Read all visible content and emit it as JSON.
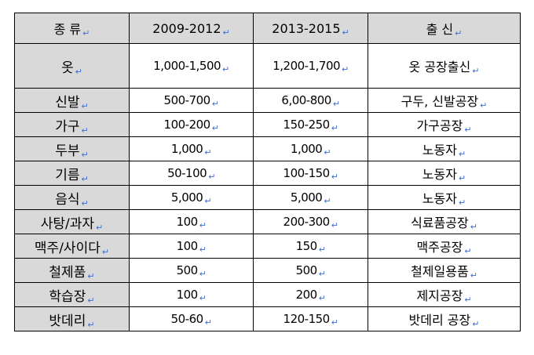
{
  "table": {
    "headers": [
      "종 류",
      "2009-2012",
      "2013-2015",
      "출 신"
    ],
    "rows": [
      [
        "옷",
        "1,000-1,500",
        "1,200-1,700",
        "옷 공장출신"
      ],
      [
        "신발",
        "500-700",
        "6,00-800",
        "구두, 신발공장"
      ],
      [
        "가구",
        "100-200",
        "150-250",
        "가구공장"
      ],
      [
        "두부",
        "1,000",
        "1,000",
        "노동자"
      ],
      [
        "기름",
        "50-100",
        "100-150",
        "노동자"
      ],
      [
        "음식",
        "5,000",
        "5,000",
        "노동자"
      ],
      [
        "사탕/과자",
        "100",
        "200-300",
        "식료품공장"
      ],
      [
        "맥주/사이다",
        "100",
        "150",
        "맥주공장"
      ],
      [
        "철제품",
        "500",
        "500",
        "철제일용품"
      ],
      [
        "학습장",
        "100",
        "200",
        "제지공장"
      ],
      [
        "밧데리",
        "50-60",
        "120-150",
        "밧데리 공장"
      ]
    ]
  },
  "paragraph_mark": "↵"
}
